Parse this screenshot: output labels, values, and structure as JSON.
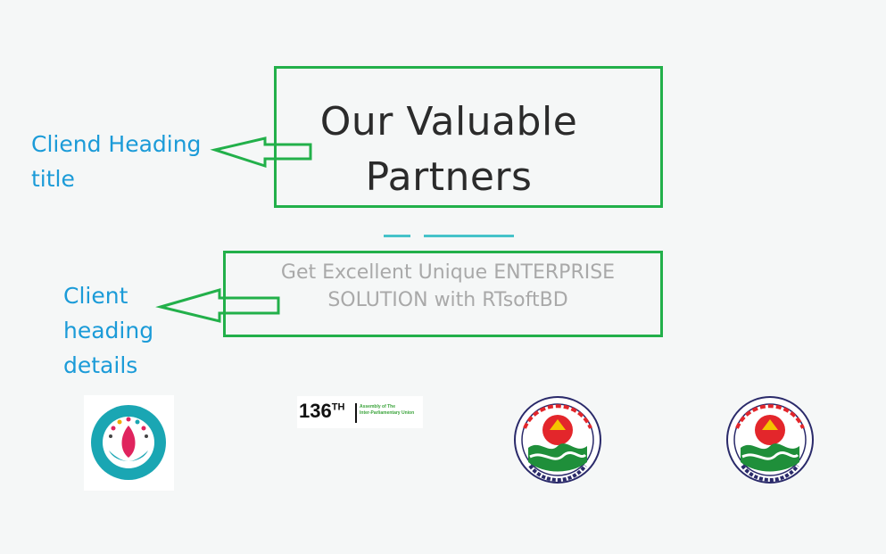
{
  "section": {
    "title_line1": "Our Valuable",
    "title_line2": "Partners",
    "subtitle_line1": "Get Excellent Unique ENTERPRISE",
    "subtitle_line2": "SOLUTION with RTsoftBD"
  },
  "annotations": {
    "title_label_line1": "Cliend Heading",
    "title_label_line2": "title",
    "details_label_line1": "Client",
    "details_label_line2": "heading",
    "details_label_line3": "details"
  },
  "partners": [
    {
      "name": "ipu-assembly-dhaka-logo"
    },
    {
      "name": "136th-assembly-logo",
      "number": "136",
      "suffix": "TH",
      "caption_line1": "Assembly of The",
      "caption_line2": "Inter-Parliamentary Union"
    },
    {
      "name": "barisal-city-corporation-logo"
    },
    {
      "name": "barisal-city-corporation-logo"
    }
  ],
  "colors": {
    "annotation_green": "#22b04a",
    "annotation_blue": "#1b9bd8",
    "divider_teal": "#46c2c9",
    "title_dark": "#2b2b2b",
    "subtitle_gray": "#a9a9a9"
  }
}
